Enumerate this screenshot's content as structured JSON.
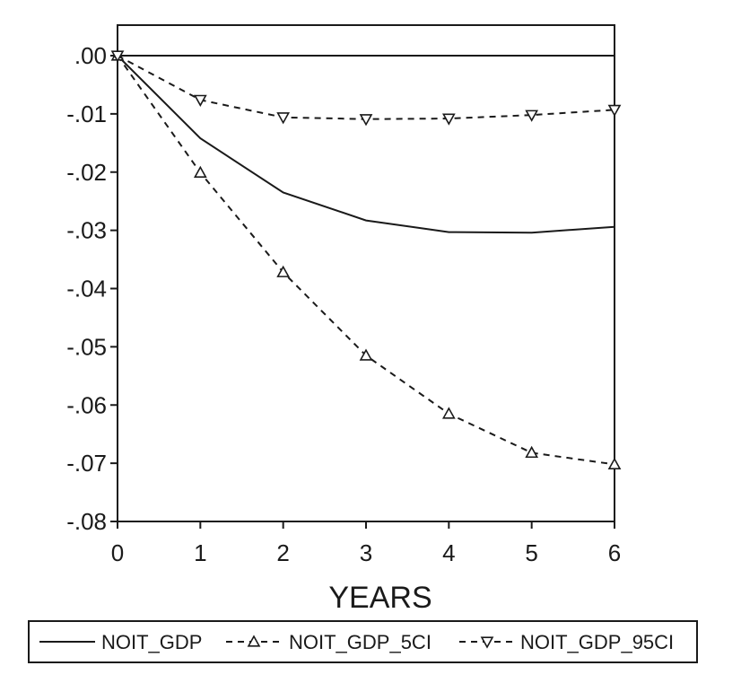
{
  "chart_data": {
    "type": "line",
    "title": "",
    "xlabel": "YEARS",
    "ylabel": "",
    "x": [
      0,
      1,
      2,
      3,
      4,
      5,
      6
    ],
    "xlim": [
      0,
      6
    ],
    "ylim": [
      -0.08,
      0.0
    ],
    "x_ticks": [
      0,
      1,
      2,
      3,
      4,
      5,
      6
    ],
    "x_tick_labels": [
      "0",
      "1",
      "2",
      "3",
      "4",
      "5",
      "6"
    ],
    "y_ticks": [
      0.0,
      -0.01,
      -0.02,
      -0.03,
      -0.04,
      -0.05,
      -0.06,
      -0.07,
      -0.08
    ],
    "y_tick_labels": [
      ".00",
      "-.01",
      "-.02",
      "-.03",
      "-.04",
      "-.05",
      "-.06",
      "-.07",
      "-.08"
    ],
    "grid": false,
    "legend_position": "bottom",
    "zero_line": 0.0,
    "series": [
      {
        "name": "NOIT_GDP",
        "style": "solid",
        "marker": "none",
        "values": [
          0.0,
          -0.0142,
          -0.0235,
          -0.0283,
          -0.0303,
          -0.0304,
          -0.0294
        ]
      },
      {
        "name": "NOIT_GDP_5CI",
        "style": "dashed",
        "marker": "triangle-up",
        "values": [
          0.0,
          -0.0201,
          -0.0372,
          -0.0515,
          -0.0615,
          -0.0682,
          -0.0702
        ]
      },
      {
        "name": "NOIT_GDP_95CI",
        "style": "dashed",
        "marker": "triangle-down",
        "values": [
          0.0,
          -0.0076,
          -0.0106,
          -0.0109,
          -0.0108,
          -0.0102,
          -0.0093
        ]
      }
    ],
    "colors": {
      "line": "#1a1a1a",
      "background": "#ffffff"
    }
  }
}
